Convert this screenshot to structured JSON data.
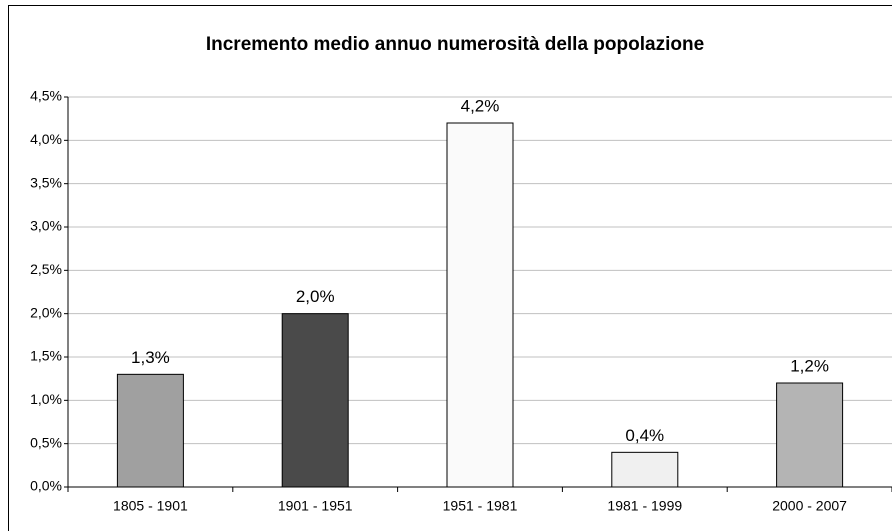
{
  "chart_data": {
    "type": "bar",
    "title": "Incremento medio annuo numerosità della popolazione",
    "categories": [
      "1805 - 1901",
      "1901 - 1951",
      "1951 - 1981",
      "1981 - 1999",
      "2000 - 2007"
    ],
    "values": [
      1.3,
      2.0,
      4.2,
      0.4,
      1.2
    ],
    "value_labels": [
      "1,3%",
      "2,0%",
      "4,2%",
      "0,4%",
      "1,2%"
    ],
    "colors": [
      "#a0a0a0",
      "#4a4a4a",
      "#fafafa",
      "#f0f0f0",
      "#b4b4b4"
    ],
    "ylim": [
      0,
      4.5
    ],
    "yticks": [
      {
        "value": 0,
        "label": "0,0%"
      },
      {
        "value": 0.5,
        "label": "0,5%"
      },
      {
        "value": 1.0,
        "label": "1,0%"
      },
      {
        "value": 1.5,
        "label": "1,5%"
      },
      {
        "value": 2.0,
        "label": "2,0%"
      },
      {
        "value": 2.5,
        "label": "2,5%"
      },
      {
        "value": 3.0,
        "label": "3,0%"
      },
      {
        "value": 3.5,
        "label": "3,5%"
      },
      {
        "value": 4.0,
        "label": "4,0%"
      },
      {
        "value": 4.5,
        "label": "4,5%"
      }
    ],
    "grid": true
  }
}
